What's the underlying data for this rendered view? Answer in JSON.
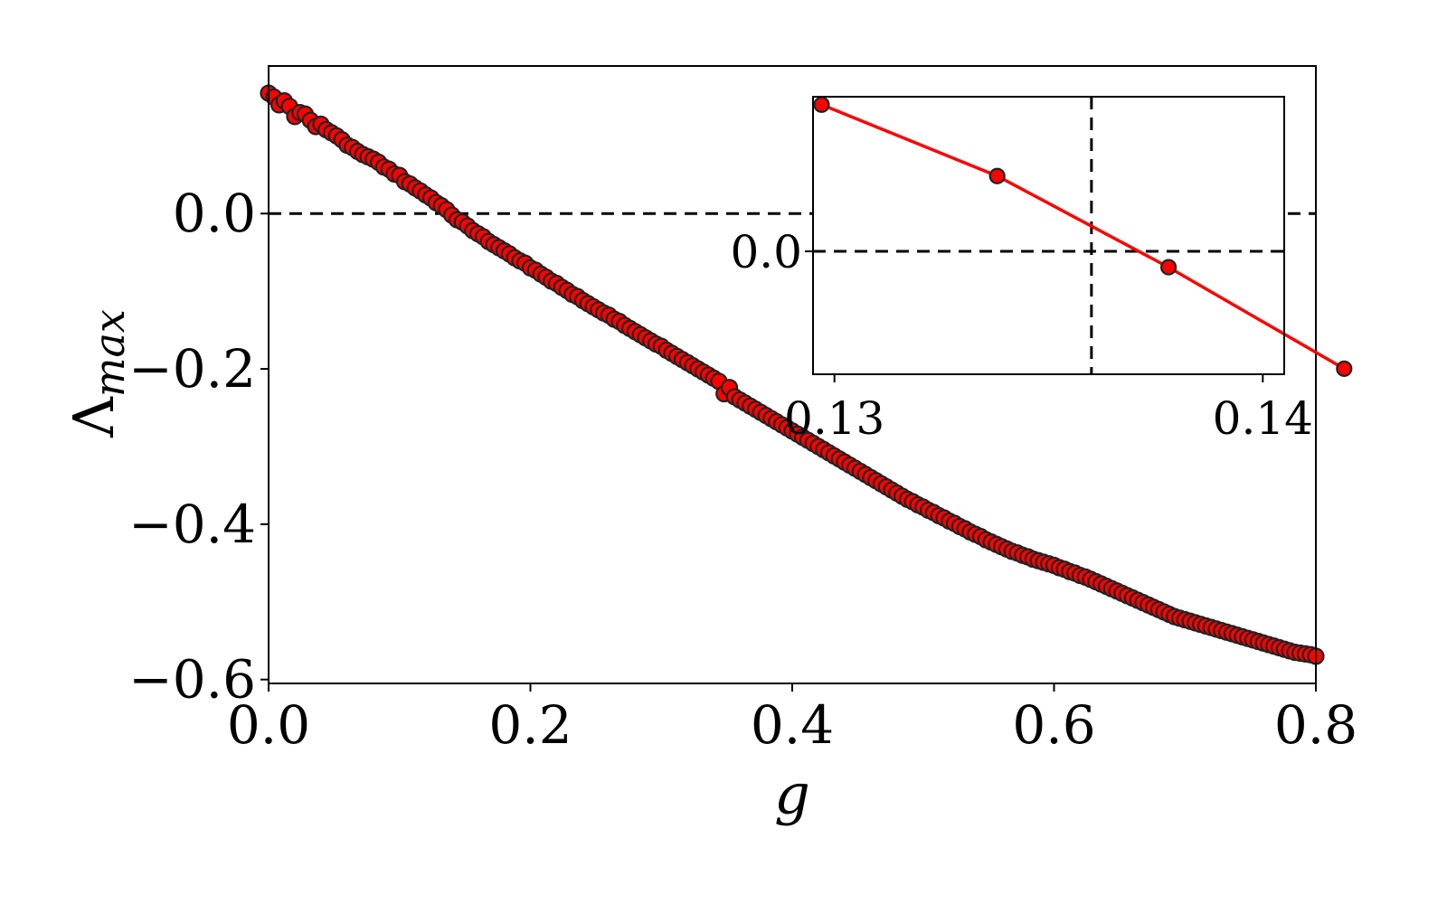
{
  "chart_data": [
    {
      "type": "scatter",
      "title": "",
      "xlabel": "g",
      "ylabel": "Λ",
      "ylabel_subscript": "max",
      "xlim": [
        0.0,
        0.8
      ],
      "ylim": [
        -0.605,
        0.19
      ],
      "x_ticks": [
        0.0,
        0.2,
        0.4,
        0.6,
        0.8
      ],
      "x_tick_labels": [
        "0.0",
        "0.2",
        "0.4",
        "0.6",
        "0.8"
      ],
      "y_ticks": [
        0.0,
        -0.2,
        -0.4,
        -0.6
      ],
      "y_tick_labels": [
        "0.0",
        "−0.2",
        "−0.4",
        "−0.6"
      ],
      "reference_lines": [
        {
          "orientation": "horizontal",
          "y": 0.0,
          "style": "dashed"
        }
      ],
      "grid": false,
      "legend": "none",
      "marker_color": "#ff0000",
      "marker_edge_color": "#222222",
      "series": [
        {
          "x": [
            0.0,
            0.004,
            0.008,
            0.012,
            0.016,
            0.02,
            0.024,
            0.028,
            0.032,
            0.036,
            0.04,
            0.044,
            0.048,
            0.052,
            0.056,
            0.06,
            0.064,
            0.068,
            0.072,
            0.076,
            0.08,
            0.084,
            0.088,
            0.092,
            0.096,
            0.1,
            0.104,
            0.108,
            0.112,
            0.116,
            0.12,
            0.124,
            0.128,
            0.132,
            0.136,
            0.14,
            0.144,
            0.148,
            0.152,
            0.156,
            0.16,
            0.164,
            0.168,
            0.172,
            0.176,
            0.18,
            0.184,
            0.188,
            0.192,
            0.196,
            0.2,
            0.204,
            0.208,
            0.212,
            0.216,
            0.22,
            0.224,
            0.228,
            0.232,
            0.236,
            0.24,
            0.244,
            0.248,
            0.252,
            0.256,
            0.26,
            0.264,
            0.268,
            0.272,
            0.276,
            0.28,
            0.284,
            0.288,
            0.292,
            0.296,
            0.3,
            0.304,
            0.308,
            0.312,
            0.316,
            0.32,
            0.324,
            0.328,
            0.332,
            0.336,
            0.34,
            0.344,
            0.348,
            0.352,
            0.356,
            0.36,
            0.364,
            0.368,
            0.372,
            0.376,
            0.38,
            0.384,
            0.388,
            0.392,
            0.396,
            0.4,
            0.404,
            0.408,
            0.412,
            0.416,
            0.42,
            0.424,
            0.428,
            0.432,
            0.436,
            0.44,
            0.444,
            0.448,
            0.452,
            0.456,
            0.46,
            0.464,
            0.468,
            0.472,
            0.476,
            0.48,
            0.484,
            0.488,
            0.492,
            0.496,
            0.5,
            0.504,
            0.508,
            0.512,
            0.516,
            0.52,
            0.524,
            0.528,
            0.532,
            0.536,
            0.54,
            0.544,
            0.548,
            0.552,
            0.556,
            0.56,
            0.564,
            0.568,
            0.572,
            0.576,
            0.58,
            0.584,
            0.588,
            0.592,
            0.596,
            0.6,
            0.604,
            0.608,
            0.612,
            0.616,
            0.62,
            0.624,
            0.628,
            0.632,
            0.636,
            0.64,
            0.644,
            0.648,
            0.652,
            0.656,
            0.66,
            0.664,
            0.668,
            0.672,
            0.676,
            0.68,
            0.684,
            0.688,
            0.692,
            0.696,
            0.7,
            0.704,
            0.708,
            0.712,
            0.716,
            0.72,
            0.724,
            0.728,
            0.732,
            0.736,
            0.74,
            0.744,
            0.748,
            0.752,
            0.756,
            0.76,
            0.764,
            0.768,
            0.772,
            0.776,
            0.78,
            0.784,
            0.788,
            0.792,
            0.796,
            0.8
          ],
          "y": [
            0.155,
            0.15,
            0.14,
            0.145,
            0.138,
            0.125,
            0.13,
            0.128,
            0.12,
            0.112,
            0.115,
            0.108,
            0.104,
            0.1,
            0.095,
            0.088,
            0.085,
            0.08,
            0.076,
            0.073,
            0.07,
            0.066,
            0.06,
            0.057,
            0.051,
            0.049,
            0.041,
            0.038,
            0.033,
            0.029,
            0.024,
            0.02,
            0.014,
            0.01,
            0.005,
            -0.002,
            -0.008,
            -0.011,
            -0.016,
            -0.022,
            -0.026,
            -0.03,
            -0.036,
            -0.04,
            -0.044,
            -0.048,
            -0.052,
            -0.057,
            -0.061,
            -0.064,
            -0.07,
            -0.073,
            -0.078,
            -0.082,
            -0.087,
            -0.09,
            -0.095,
            -0.099,
            -0.104,
            -0.107,
            -0.112,
            -0.116,
            -0.12,
            -0.124,
            -0.128,
            -0.131,
            -0.136,
            -0.139,
            -0.144,
            -0.148,
            -0.152,
            -0.156,
            -0.16,
            -0.164,
            -0.168,
            -0.171,
            -0.176,
            -0.18,
            -0.184,
            -0.188,
            -0.192,
            -0.196,
            -0.2,
            -0.204,
            -0.208,
            -0.212,
            -0.216,
            -0.232,
            -0.224,
            -0.236,
            -0.24,
            -0.244,
            -0.248,
            -0.252,
            -0.256,
            -0.26,
            -0.264,
            -0.268,
            -0.272,
            -0.276,
            -0.28,
            -0.284,
            -0.288,
            -0.292,
            -0.296,
            -0.3,
            -0.304,
            -0.308,
            -0.312,
            -0.316,
            -0.32,
            -0.324,
            -0.328,
            -0.332,
            -0.336,
            -0.34,
            -0.344,
            -0.348,
            -0.352,
            -0.356,
            -0.36,
            -0.364,
            -0.368,
            -0.371,
            -0.375,
            -0.378,
            -0.382,
            -0.385,
            -0.389,
            -0.392,
            -0.396,
            -0.399,
            -0.403,
            -0.406,
            -0.41,
            -0.413,
            -0.416,
            -0.42,
            -0.423,
            -0.426,
            -0.429,
            -0.432,
            -0.435,
            -0.437,
            -0.44,
            -0.442,
            -0.445,
            -0.447,
            -0.449,
            -0.451,
            -0.453,
            -0.456,
            -0.458,
            -0.461,
            -0.463,
            -0.466,
            -0.468,
            -0.471,
            -0.474,
            -0.477,
            -0.48,
            -0.483,
            -0.486,
            -0.489,
            -0.492,
            -0.495,
            -0.498,
            -0.501,
            -0.504,
            -0.507,
            -0.51,
            -0.513,
            -0.516,
            -0.519,
            -0.521,
            -0.523,
            -0.525,
            -0.527,
            -0.529,
            -0.531,
            -0.533,
            -0.535,
            -0.537,
            -0.539,
            -0.541,
            -0.543,
            -0.545,
            -0.547,
            -0.549,
            -0.551,
            -0.553,
            -0.555,
            -0.557,
            -0.559,
            -0.561,
            -0.563,
            -0.565,
            -0.566,
            -0.567,
            -0.568,
            -0.57
          ]
        }
      ]
    },
    {
      "type": "line",
      "inset": true,
      "title": "",
      "xlim": [
        0.1295,
        0.1405
      ],
      "ylim": [
        -0.0155,
        0.0195
      ],
      "x_ticks": [
        0.13,
        0.14
      ],
      "x_tick_labels": [
        "0.13",
        "0.14"
      ],
      "y_ticks": [
        0.0
      ],
      "y_tick_labels": [
        "0.0"
      ],
      "reference_lines": [
        {
          "orientation": "horizontal",
          "y": 0.0,
          "style": "dashed"
        },
        {
          "orientation": "vertical",
          "x": 0.136,
          "style": "dashed"
        }
      ],
      "line_color": "#ff0000",
      "marker_color": "#ff0000",
      "series": [
        {
          "x": [
            0.1297,
            0.1338,
            0.1378,
            0.1419
          ],
          "y": [
            0.0185,
            0.0095,
            -0.002,
            -0.0148
          ]
        }
      ]
    }
  ]
}
